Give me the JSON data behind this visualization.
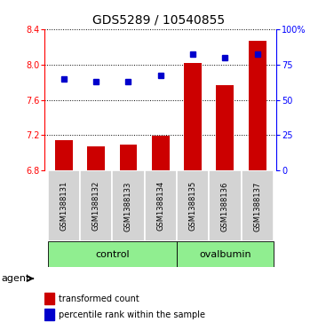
{
  "title": "GDS5289 / 10540855",
  "samples": [
    "GSM1388131",
    "GSM1388132",
    "GSM1388133",
    "GSM1388134",
    "GSM1388135",
    "GSM1388136",
    "GSM1388137"
  ],
  "transformed_count": [
    7.14,
    7.07,
    7.09,
    7.19,
    8.02,
    7.77,
    8.27
  ],
  "percentile_rank": [
    65,
    63,
    63,
    67,
    82,
    80,
    82
  ],
  "bar_base": 6.8,
  "left_ylim": [
    6.8,
    8.4
  ],
  "right_ylim": [
    0,
    100
  ],
  "left_yticks": [
    6.8,
    7.2,
    7.6,
    8.0,
    8.4
  ],
  "right_yticks": [
    0,
    25,
    50,
    75,
    100
  ],
  "right_yticklabels": [
    "0",
    "25",
    "50",
    "75",
    "100%"
  ],
  "bar_color": "#cc0000",
  "dot_color": "#0000cc",
  "control_color": "#90ee90",
  "sample_bg_color": "#d3d3d3",
  "control_label": "control",
  "ovalbumin_label": "ovalbumin",
  "agent_label": "agent",
  "legend_bar_label": "transformed count",
  "legend_dot_label": "percentile rank within the sample",
  "control_indices": [
    0,
    1,
    2,
    3
  ],
  "ovalbumin_indices": [
    4,
    5,
    6
  ],
  "title_fontsize": 10,
  "tick_fontsize": 7,
  "sample_fontsize": 6,
  "group_fontsize": 8,
  "legend_fontsize": 7,
  "agent_fontsize": 8
}
